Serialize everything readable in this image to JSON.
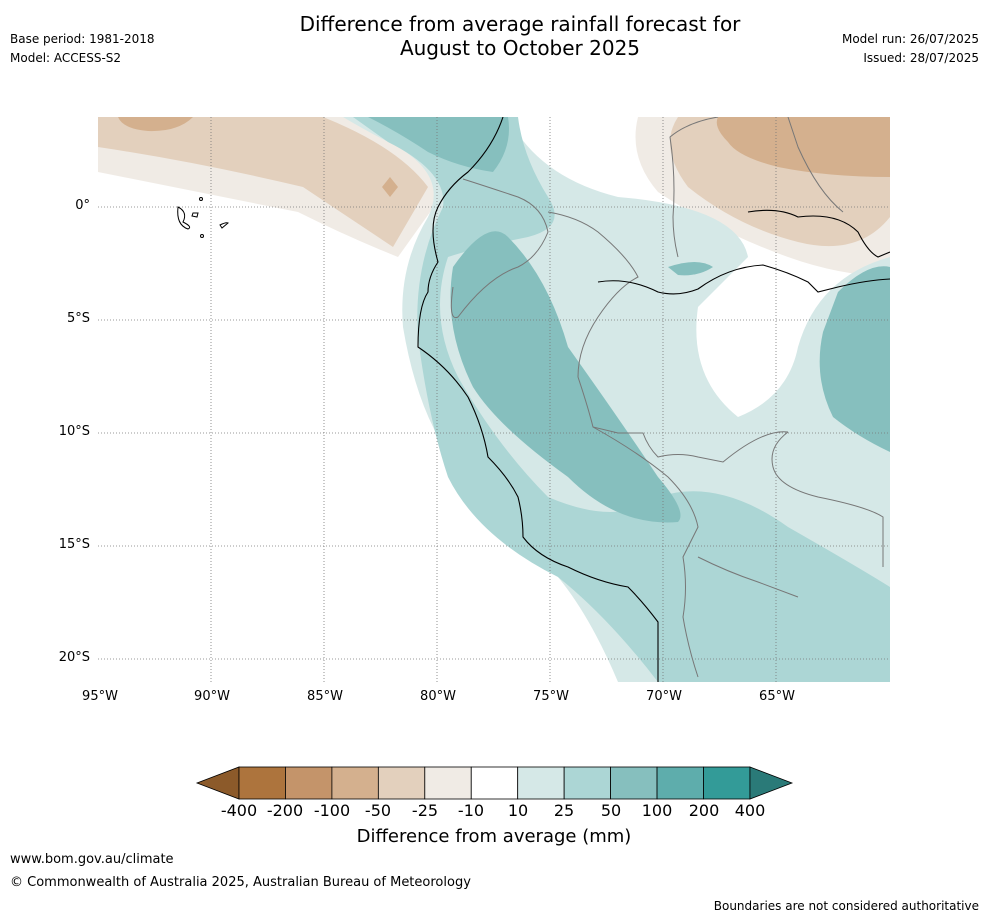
{
  "title_line1": "Difference from average rainfall forecast for",
  "title_line2": "August to October 2025",
  "base_period": "Base period: 1981-2018",
  "model": "Model: ACCESS-S2",
  "model_run": "Model run: 26/07/2025",
  "issued": "Issued: 28/07/2025",
  "lat_labels": [
    "0°",
    "5°S",
    "10°S",
    "15°S",
    "20°S"
  ],
  "lon_labels": [
    "95°W",
    "90°W",
    "85°W",
    "80°W",
    "75°W",
    "70°W",
    "65°W"
  ],
  "colorbar": {
    "title": "Difference from average (mm)",
    "ticks": [
      "-400",
      "-200",
      "-100",
      "-50",
      "-25",
      "-10",
      "10",
      "25",
      "50",
      "100",
      "200",
      "400"
    ],
    "colors": [
      "#8c5a2a",
      "#ad743d",
      "#c4946a",
      "#d4b08e",
      "#e3d0bd",
      "#f0ebe5",
      "#ffffff",
      "#d5e8e7",
      "#acd6d5",
      "#86bfbe",
      "#5eadac",
      "#339b98",
      "#2a7a78"
    ]
  },
  "footer_url": "www.bom.gov.au/climate",
  "footer_copyright": "© Commonwealth of Australia 2025, Australian Bureau of Meteorology",
  "disclaimer": "Boundaries are not considered authoritative"
}
